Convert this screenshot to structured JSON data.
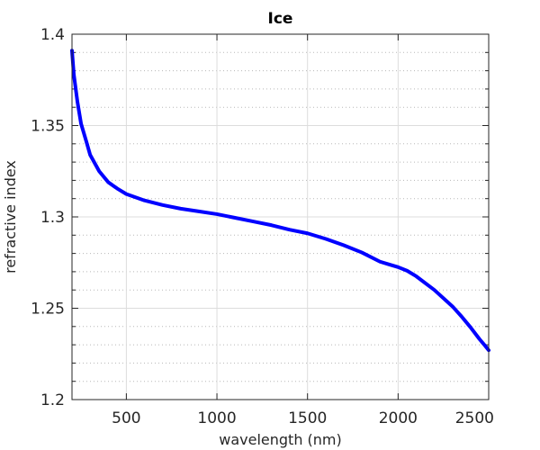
{
  "chart_data": {
    "type": "line",
    "title": "Ice",
    "xlabel": "wavelength (nm)",
    "ylabel": "refractive index",
    "xlim": [
      200,
      2500
    ],
    "ylim": [
      1.2,
      1.4
    ],
    "x_ticks": [
      500,
      1000,
      1500,
      2000,
      2500
    ],
    "x_tick_labels": [
      "500",
      "1000",
      "1500",
      "2000",
      "2500"
    ],
    "y_ticks": [
      1.2,
      1.25,
      1.3,
      1.35,
      1.4
    ],
    "y_tick_labels": [
      "1.2",
      "1.25",
      "1.3",
      "1.35",
      "1.4"
    ],
    "y_minor_ticks": [
      1.21,
      1.22,
      1.23,
      1.24,
      1.26,
      1.27,
      1.28,
      1.29,
      1.31,
      1.32,
      1.33,
      1.34,
      1.36,
      1.37,
      1.38,
      1.39
    ],
    "grid": true,
    "minor_grid": true,
    "series": [
      {
        "color": "#0000ff",
        "x": [
          200,
          210,
          230,
          250,
          280,
          300,
          350,
          400,
          450,
          500,
          600,
          700,
          800,
          900,
          1000,
          1100,
          1200,
          1300,
          1400,
          1500,
          1600,
          1700,
          1800,
          1900,
          1950,
          2000,
          2050,
          2100,
          2200,
          2300,
          2350,
          2400,
          2450,
          2480,
          2500
        ],
        "y": [
          1.391,
          1.378,
          1.363,
          1.351,
          1.341,
          1.334,
          1.325,
          1.319,
          1.3155,
          1.3125,
          1.309,
          1.3065,
          1.3045,
          1.303,
          1.3015,
          1.2995,
          1.2975,
          1.2955,
          1.293,
          1.291,
          1.288,
          1.2845,
          1.2805,
          1.2755,
          1.274,
          1.2725,
          1.2705,
          1.2675,
          1.26,
          1.251,
          1.2455,
          1.2395,
          1.233,
          1.2295,
          1.227
        ]
      }
    ]
  }
}
